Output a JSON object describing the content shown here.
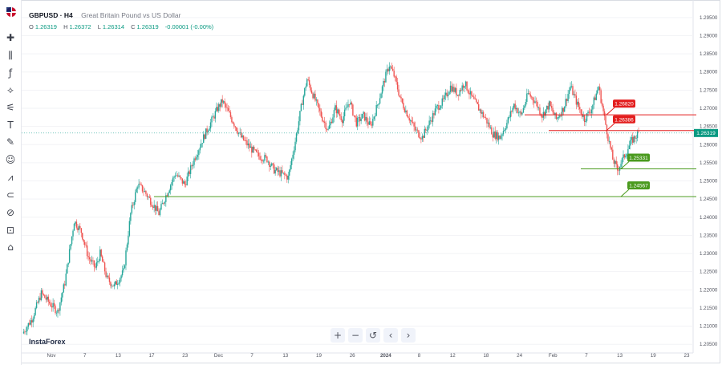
{
  "header": {
    "symbol": "GBPUSD · H4",
    "description": "Great Britain Pound vs US Dollar",
    "o_label": "O",
    "o": "1.26319",
    "h_label": "H",
    "h": "1.26372",
    "l_label": "L",
    "l": "1.26314",
    "c_label": "C",
    "c": "1.26319",
    "change": "-0.00001 (-0.00%)"
  },
  "brand": "InstaForex",
  "toolbar_icons": [
    "crosshair-icon",
    "trend-line-icon",
    "fib-icon",
    "pitchfork-icon",
    "brush-icon",
    "text-icon",
    "pen-icon",
    "smiley-icon",
    "ruler-icon",
    "magnet-icon",
    "eye-icon",
    "lock-icon",
    "trash-icon"
  ],
  "nav_controls": {
    "zoom_in": "+",
    "zoom_out": "−",
    "reset": "↺",
    "back": "‹",
    "forward": "›"
  },
  "chart_data": {
    "type": "candlestick",
    "symbol": "GBPUSD",
    "timeframe": "H4",
    "y_ticks": [
      "1.29500",
      "1.29000",
      "1.28500",
      "1.28000",
      "1.27500",
      "1.27000",
      "1.26500",
      "1.26000",
      "1.25500",
      "1.25000",
      "1.24500",
      "1.24000",
      "1.23500",
      "1.23000",
      "1.22500",
      "1.22000",
      "1.21500",
      "1.21000",
      "1.20500"
    ],
    "ylim": [
      1.2035,
      1.2985
    ],
    "x_ticks": [
      "Nov",
      "7",
      "13",
      "17",
      "23",
      "Dec",
      "7",
      "13",
      "19",
      "26",
      "2024",
      "8",
      "12",
      "18",
      "24",
      "Feb",
      "7",
      "13",
      "19",
      "23"
    ],
    "current_price": "1.26319",
    "levels": [
      {
        "value": 1.2682,
        "label": "1.26820",
        "color": "#e31e1e"
      },
      {
        "value": 1.26386,
        "label": "1.26386",
        "color": "#e31e1e"
      },
      {
        "value": 1.25331,
        "label": "1.25331",
        "color": "#4a9a1e"
      },
      {
        "value": 1.24567,
        "label": "1.24567",
        "color": "#4a9a1e"
      }
    ],
    "series_path": [
      [
        0,
        1.208
      ],
      [
        8,
        1.212
      ],
      [
        16,
        1.219
      ],
      [
        24,
        1.216
      ],
      [
        30,
        1.214
      ],
      [
        36,
        1.222
      ],
      [
        44,
        1.239
      ],
      [
        50,
        1.236
      ],
      [
        56,
        1.229
      ],
      [
        62,
        1.226
      ],
      [
        66,
        1.23
      ],
      [
        72,
        1.223
      ],
      [
        78,
        1.221
      ],
      [
        86,
        1.225
      ],
      [
        92,
        1.241
      ],
      [
        98,
        1.249
      ],
      [
        104,
        1.247
      ],
      [
        110,
        1.244
      ],
      [
        116,
        1.241
      ],
      [
        122,
        1.246
      ],
      [
        130,
        1.252
      ],
      [
        138,
        1.249
      ],
      [
        146,
        1.256
      ],
      [
        154,
        1.262
      ],
      [
        160,
        1.266
      ],
      [
        166,
        1.27
      ],
      [
        170,
        1.272
      ],
      [
        178,
        1.267
      ],
      [
        186,
        1.262
      ],
      [
        194,
        1.259
      ],
      [
        200,
        1.257
      ],
      [
        208,
        1.256
      ],
      [
        214,
        1.253
      ],
      [
        220,
        1.252
      ],
      [
        226,
        1.251
      ],
      [
        232,
        1.261
      ],
      [
        238,
        1.272
      ],
      [
        242,
        1.278
      ],
      [
        248,
        1.273
      ],
      [
        254,
        1.268
      ],
      [
        260,
        1.264
      ],
      [
        266,
        1.27
      ],
      [
        272,
        1.267
      ],
      [
        278,
        1.272
      ],
      [
        284,
        1.266
      ],
      [
        290,
        1.268
      ],
      [
        296,
        1.265
      ],
      [
        302,
        1.271
      ],
      [
        308,
        1.278
      ],
      [
        312,
        1.282
      ],
      [
        316,
        1.279
      ],
      [
        322,
        1.272
      ],
      [
        328,
        1.268
      ],
      [
        334,
        1.264
      ],
      [
        340,
        1.262
      ],
      [
        346,
        1.266
      ],
      [
        352,
        1.27
      ],
      [
        358,
        1.272
      ],
      [
        364,
        1.276
      ],
      [
        370,
        1.274
      ],
      [
        376,
        1.277
      ],
      [
        382,
        1.273
      ],
      [
        388,
        1.27
      ],
      [
        394,
        1.267
      ],
      [
        400,
        1.263
      ],
      [
        406,
        1.262
      ],
      [
        412,
        1.266
      ],
      [
        418,
        1.271
      ],
      [
        424,
        1.268
      ],
      [
        430,
        1.274
      ],
      [
        436,
        1.272
      ],
      [
        442,
        1.268
      ],
      [
        448,
        1.271
      ],
      [
        454,
        1.267
      ],
      [
        460,
        1.27
      ],
      [
        466,
        1.276
      ],
      [
        472,
        1.271
      ],
      [
        478,
        1.267
      ],
      [
        484,
        1.27
      ],
      [
        490,
        1.276
      ],
      [
        494,
        1.269
      ],
      [
        498,
        1.262
      ],
      [
        502,
        1.256
      ],
      [
        506,
        1.253
      ],
      [
        512,
        1.257
      ],
      [
        518,
        1.261
      ],
      [
        524,
        1.2632
      ]
    ]
  }
}
